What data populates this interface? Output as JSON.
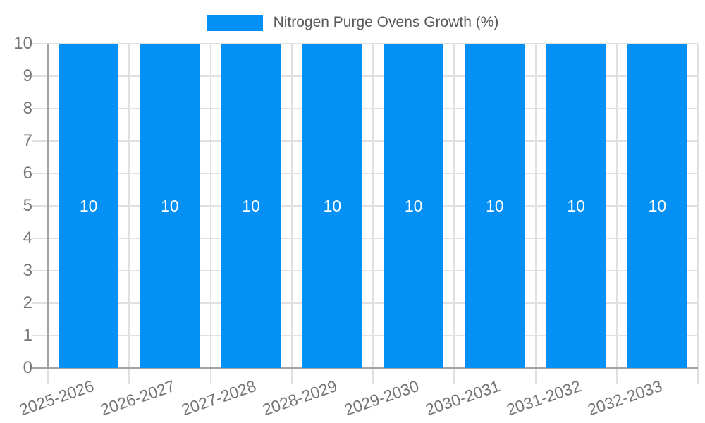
{
  "legend": {
    "label": "Nitrogen Purge Ovens Growth (%)"
  },
  "chart_data": {
    "type": "bar",
    "title": "Nitrogen Purge Ovens Growth (%)",
    "categories": [
      "2025-2026",
      "2026-2027",
      "2027-2028",
      "2028-2029",
      "2029-2030",
      "2030-2031",
      "2031-2032",
      "2032-2033"
    ],
    "series": [
      {
        "name": "Nitrogen Purge Ovens Growth (%)",
        "values": [
          10,
          10,
          10,
          10,
          10,
          10,
          10,
          10
        ]
      }
    ],
    "bar_value_labels": [
      "10",
      "10",
      "10",
      "10",
      "10",
      "10",
      "10",
      "10"
    ],
    "xlabel": "",
    "ylabel": "",
    "ylim": [
      0,
      10
    ],
    "yticks": [
      0,
      1,
      2,
      3,
      4,
      5,
      6,
      7,
      8,
      9,
      10
    ],
    "grid": true,
    "legend_position": "top-center",
    "colors": {
      "bar": "#0590f5",
      "grid": "#e0e0e0",
      "axis": "#a3a3a3",
      "tick_text": "#757575",
      "legend_text": "#58595b",
      "bar_label": "#ffffff"
    }
  }
}
